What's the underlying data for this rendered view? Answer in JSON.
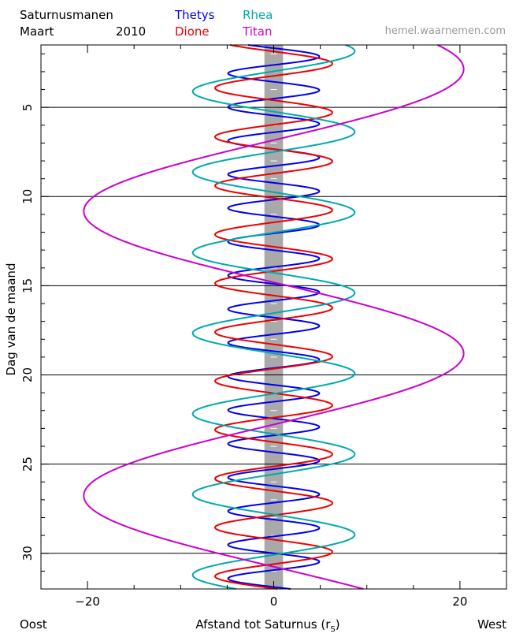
{
  "header": {
    "title": "Saturnusmanen",
    "month": "Maart",
    "year": "2010",
    "website": "hemel.waarnemen.com"
  },
  "chart_data": {
    "type": "line",
    "title": "Saturnusmanen",
    "subtitle": "Maart 2010",
    "xlabel": "Afstand tot Saturnus (r",
    "xlabel_sub": "S",
    "xlabel_close": ")",
    "ylabel": "Dag van de maand",
    "x_left_label": "Oost",
    "x_right_label": "West",
    "xlim": [
      -25,
      25
    ],
    "ylim": [
      1.5,
      32
    ],
    "y_inverted": true,
    "x_ticks": [
      -20,
      0,
      20
    ],
    "x_tick_labels": [
      "−20",
      "0",
      "20"
    ],
    "y_ticks": [
      5,
      10,
      15,
      20,
      25,
      30
    ],
    "y_tick_labels": [
      "5",
      "10",
      "15",
      "20",
      "25",
      "30"
    ],
    "grid": "horizontal lines at every 5 days",
    "legend": "top-center",
    "saturn_band": {
      "x_range": [
        -1,
        1
      ],
      "color": "#a9a9a9"
    },
    "series": [
      {
        "name": "Thetys",
        "color": "#0000ee",
        "amplitude": 4.9,
        "period_days": 1.888,
        "phase_day": 2.15,
        "day": [
          1.5,
          32
        ]
      },
      {
        "name": "Dione",
        "color": "#ee0000",
        "amplitude": 6.3,
        "period_days": 2.737,
        "phase_day": 2.55,
        "day": [
          1.5,
          32
        ]
      },
      {
        "name": "Rhea",
        "color": "#00aaaa",
        "amplitude": 8.7,
        "period_days": 4.518,
        "phase_day": 1.85,
        "day": [
          1.5,
          32
        ]
      },
      {
        "name": "Titan",
        "color": "#cc00cc",
        "amplitude": 20.4,
        "period_days": 15.945,
        "phase_day": 2.85,
        "day": [
          1.5,
          32
        ]
      }
    ]
  }
}
